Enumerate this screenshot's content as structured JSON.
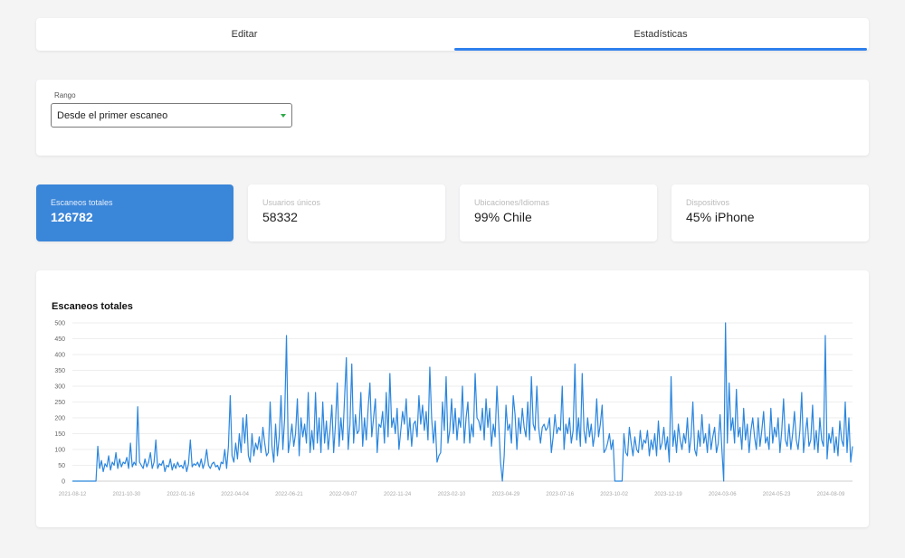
{
  "tabs": [
    {
      "label": "Editar",
      "active": false
    },
    {
      "label": "Estadísticas",
      "active": true
    }
  ],
  "range": {
    "label": "Rango",
    "selected": "Desde el primer escaneo"
  },
  "stats": [
    {
      "label": "Escaneos totales",
      "value": "126782",
      "active": true
    },
    {
      "label": "Usuarios únicos",
      "value": "58332",
      "active": false
    },
    {
      "label": "Ubicaciones/Idiomas",
      "value": "99% Chile",
      "active": false
    },
    {
      "label": "Dispositivos",
      "value": "45% iPhone",
      "active": false
    }
  ],
  "colors": {
    "accent": "#2f80ed",
    "line": "#2b86de",
    "stat_active": "#3a86d9"
  },
  "chart_data": {
    "type": "line",
    "title": "Escaneos totales",
    "ylim": [
      0,
      500
    ],
    "yticks": [
      0,
      50,
      100,
      150,
      200,
      250,
      300,
      350,
      400,
      450,
      500
    ],
    "xtick_labels": [
      "2021-08-12",
      "2021-10-30",
      "2022-01-16",
      "2022-04-04",
      "2022-06-21",
      "2022-09-07",
      "2022-11-24",
      "2023-02-10",
      "2023-04-29",
      "2023-07-16",
      "2023-10-02",
      "2023-12-19",
      "2024-03-06",
      "2024-05-23",
      "2024-08-09"
    ],
    "grid": true,
    "series": [
      {
        "values": [
          0,
          0,
          0,
          0,
          0,
          0,
          0,
          0,
          0,
          0,
          0,
          0,
          0,
          0,
          110,
          40,
          65,
          30,
          55,
          45,
          80,
          35,
          60,
          50,
          90,
          40,
          70,
          45,
          60,
          55,
          75,
          40,
          120,
          45,
          60,
          50,
          235,
          60,
          50,
          40,
          70,
          45,
          60,
          90,
          40,
          60,
          130,
          40,
          55,
          50,
          65,
          30,
          50,
          45,
          70,
          35,
          55,
          40,
          60,
          45,
          50,
          40,
          65,
          30,
          55,
          130,
          45,
          55,
          50,
          60,
          45,
          70,
          40,
          60,
          100,
          50,
          40,
          55,
          60,
          45,
          50,
          35,
          60,
          55,
          100,
          40,
          110,
          270,
          80,
          60,
          120,
          70,
          150,
          90,
          200,
          120,
          210,
          80,
          60,
          150,
          80,
          120,
          100,
          140,
          90,
          170,
          120,
          80,
          90,
          250,
          110,
          60,
          180,
          80,
          140,
          270,
          100,
          200,
          460,
          90,
          130,
          180,
          110,
          150,
          260,
          80,
          200,
          140,
          180,
          120,
          280,
          90,
          160,
          100,
          280,
          120,
          200,
          90,
          250,
          120,
          190,
          100,
          160,
          240,
          90,
          180,
          310,
          110,
          200,
          130,
          260,
          390,
          100,
          180,
          370,
          120,
          210,
          150,
          160,
          280,
          110,
          200,
          130,
          230,
          310,
          140,
          200,
          260,
          90,
          180,
          170,
          220,
          120,
          280,
          140,
          340,
          170,
          200,
          150,
          230,
          100,
          160,
          220,
          180,
          260,
          130,
          200,
          110,
          180,
          190,
          140,
          270,
          180,
          240,
          160,
          220,
          130,
          360,
          200,
          120,
          190,
          60,
          80,
          90,
          250,
          160,
          330,
          120,
          160,
          260,
          150,
          230,
          130,
          200,
          170,
          300,
          120,
          200,
          250,
          120,
          180,
          140,
          340,
          200,
          190,
          160,
          230,
          130,
          260,
          170,
          230,
          110,
          180,
          140,
          300,
          180,
          60,
          0,
          80,
          240,
          160,
          180,
          120,
          270,
          210,
          100,
          200,
          150,
          230,
          170,
          140,
          250,
          130,
          330,
          180,
          160,
          300,
          170,
          120,
          170,
          180,
          160,
          170,
          200,
          90,
          140,
          210,
          150,
          170,
          160,
          300,
          100,
          180,
          150,
          200,
          120,
          160,
          370,
          130,
          200,
          110,
          340,
          160,
          120,
          200,
          140,
          180,
          110,
          150,
          260,
          140,
          180,
          240,
          90,
          100,
          120,
          150,
          100,
          130,
          0,
          0,
          0,
          0,
          0,
          150,
          90,
          80,
          170,
          120,
          80,
          140,
          100,
          90,
          160,
          100,
          130,
          120,
          160,
          80,
          130,
          100,
          150,
          80,
          190,
          100,
          120,
          170,
          100,
          140,
          60,
          330,
          110,
          160,
          90,
          180,
          130,
          100,
          150,
          120,
          200,
          90,
          140,
          250,
          100,
          80,
          160,
          110,
          210,
          120,
          150,
          90,
          180,
          100,
          140,
          170,
          90,
          120,
          210,
          100,
          0,
          500,
          120,
          310,
          160,
          200,
          120,
          290,
          140,
          170,
          100,
          230,
          130,
          180,
          90,
          160,
          200,
          140,
          100,
          200,
          110,
          160,
          220,
          120,
          140,
          100,
          230,
          120,
          170,
          140,
          200,
          90,
          160,
          260,
          130,
          110,
          180,
          100,
          150,
          220,
          130,
          100,
          160,
          280,
          90,
          150,
          200,
          110,
          130,
          240,
          100,
          160,
          90,
          200,
          130,
          110,
          460,
          70,
          150,
          120,
          170,
          90,
          140,
          80,
          190,
          130,
          110,
          250,
          90,
          200,
          60,
          110
        ]
      }
    ]
  }
}
